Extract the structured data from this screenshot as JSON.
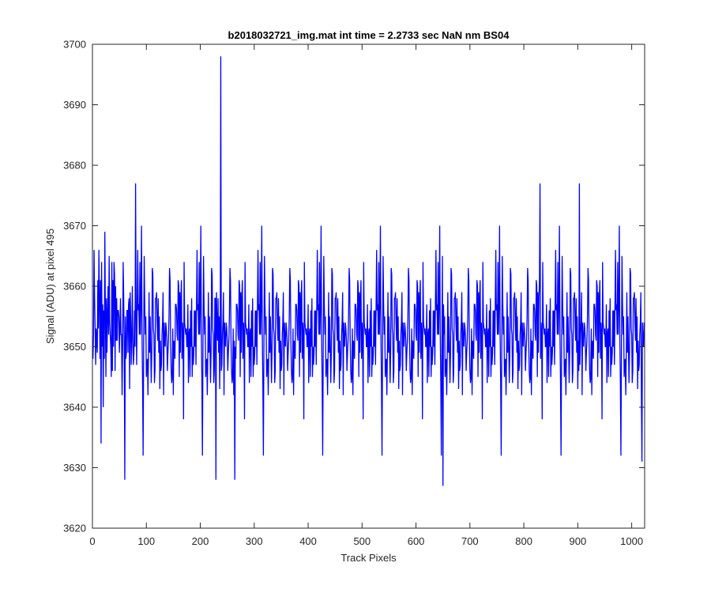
{
  "chart_data": {
    "type": "line",
    "title": "b2018032721_img.mat int time = 2.2733 sec  NaN nm BS04",
    "xlabel": "Track Pixels",
    "ylabel": "Signal (ADU) at pixel 495",
    "xlim": [
      0,
      1024
    ],
    "ylim": [
      3620,
      3700
    ],
    "xticks": [
      0,
      100,
      200,
      300,
      400,
      500,
      600,
      700,
      800,
      900,
      1000
    ],
    "yticks": [
      3620,
      3630,
      3640,
      3650,
      3660,
      3670,
      3680,
      3690,
      3700
    ],
    "grid": false,
    "box": true,
    "series": [
      {
        "color": "#0000ff",
        "x_start": 1,
        "x_step": 1,
        "num_points": 1024,
        "mean": 3653,
        "std": 6.5,
        "peaks": [
          {
            "x": 60,
            "y": 3628
          },
          {
            "x": 80,
            "y": 3677
          },
          {
            "x": 229,
            "y": 3628
          },
          {
            "x": 238,
            "y": 3698
          },
          {
            "x": 264,
            "y": 3628
          },
          {
            "x": 650,
            "y": 3627
          },
          {
            "x": 830,
            "y": 3677
          },
          {
            "x": 903,
            "y": 3677
          },
          {
            "x": 1019,
            "y": 3631
          }
        ]
      }
    ]
  },
  "colors": {
    "axes": "#262626",
    "line": "#0000ff",
    "background": "#ffffff"
  }
}
